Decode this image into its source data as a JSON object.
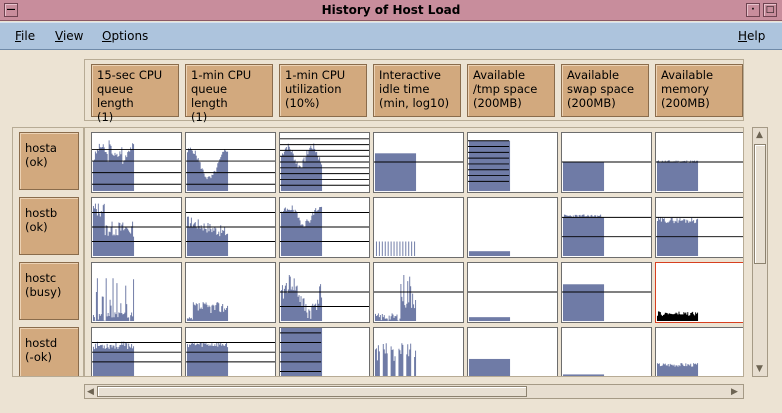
{
  "window": {
    "title": "History of Host Load"
  },
  "menu": {
    "file": {
      "label": "File",
      "mnemonic": "F",
      "rest": "ile"
    },
    "view": {
      "label": "View",
      "mnemonic": "V",
      "rest": "iew"
    },
    "options": {
      "label": "Options",
      "mnemonic": "O",
      "rest": "ptions"
    },
    "help": {
      "label": "Help",
      "mnemonic": "H",
      "rest": "elp"
    }
  },
  "columns": [
    "15-sec CPU\nqueue length\n(1)",
    "1-min CPU\nqueue length\n(1)",
    "1-min CPU\nutilization\n(10%)",
    "Interactive\nidle time\n(min, log10)",
    "Available\n/tmp space\n(200MB)",
    "Available\nswap space\n(200MB)",
    "Available\nmemory\n(200MB)"
  ],
  "hosts": [
    {
      "name": "hosta",
      "status": "(ok)"
    },
    {
      "name": "hostb",
      "status": "(ok)"
    },
    {
      "name": "hostc",
      "status": "(busy)"
    },
    {
      "name": "hostd",
      "status": "(-ok)"
    }
  ],
  "colors": {
    "plot": "#6f7ba6",
    "busy_border": "#d74020",
    "memory_busy": "#000000"
  },
  "icons": {
    "minimize": "minimize-icon",
    "close": "close-icon",
    "scroll_up": "scroll-up-arrow-icon",
    "scroll_down": "scroll-down-arrow-icon",
    "scroll_left": "scroll-left-arrow-icon",
    "scroll_right": "scroll-right-arrow-icon"
  }
}
